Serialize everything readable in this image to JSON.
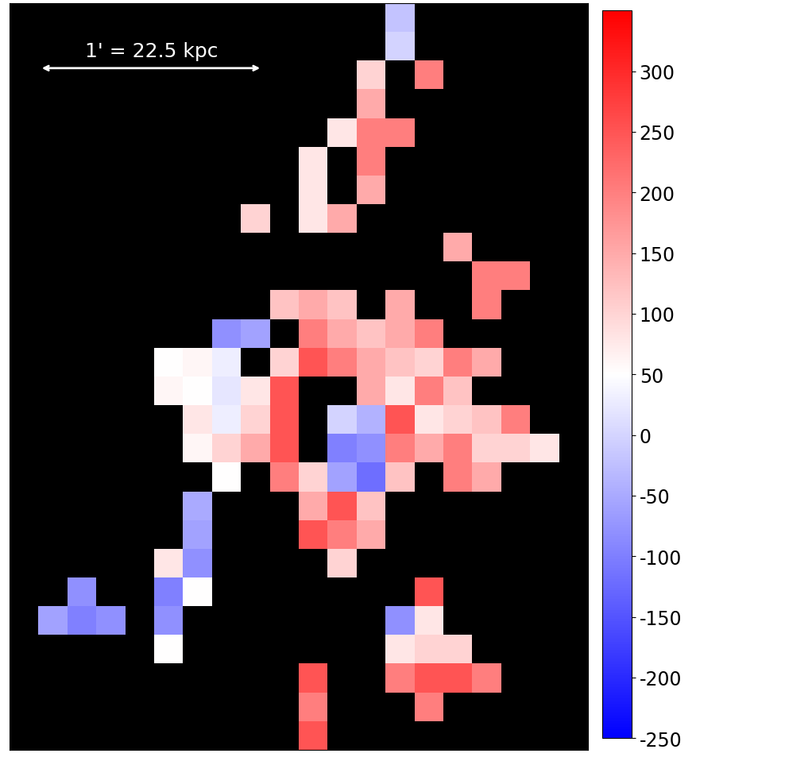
{
  "chart_data": {
    "type": "heatmap",
    "cells": [
      [
        null,
        null,
        null,
        null,
        null,
        null,
        null,
        null,
        null,
        null,
        null,
        null,
        null,
        -20,
        null,
        null,
        null,
        null,
        null,
        null
      ],
      [
        null,
        null,
        null,
        null,
        null,
        null,
        null,
        null,
        null,
        null,
        null,
        null,
        null,
        0,
        null,
        null,
        null,
        null,
        null,
        null
      ],
      [
        null,
        null,
        null,
        null,
        null,
        null,
        null,
        null,
        null,
        null,
        null,
        null,
        100,
        null,
        200,
        null,
        null,
        null,
        null,
        null
      ],
      [
        null,
        null,
        null,
        null,
        null,
        null,
        null,
        null,
        null,
        null,
        null,
        null,
        150,
        null,
        null,
        null,
        null,
        null,
        null,
        null
      ],
      [
        null,
        null,
        null,
        null,
        null,
        null,
        null,
        null,
        null,
        null,
        null,
        80,
        200,
        200,
        null,
        null,
        null,
        null,
        null,
        null
      ],
      [
        null,
        null,
        null,
        null,
        null,
        null,
        null,
        null,
        null,
        null,
        80,
        null,
        200,
        null,
        null,
        null,
        null,
        null,
        null,
        null
      ],
      [
        null,
        null,
        null,
        null,
        null,
        null,
        null,
        null,
        null,
        null,
        80,
        null,
        150,
        null,
        null,
        null,
        null,
        null,
        null,
        null
      ],
      [
        null,
        null,
        null,
        null,
        null,
        null,
        null,
        null,
        100,
        null,
        80,
        150,
        null,
        null,
        null,
        null,
        null,
        null,
        null,
        null
      ],
      [
        null,
        null,
        null,
        null,
        null,
        null,
        null,
        null,
        null,
        null,
        null,
        null,
        null,
        null,
        null,
        150,
        null,
        null,
        null,
        null
      ],
      [
        null,
        null,
        null,
        null,
        null,
        null,
        null,
        null,
        null,
        null,
        null,
        null,
        null,
        null,
        null,
        null,
        200,
        200,
        null,
        null
      ],
      [
        null,
        null,
        null,
        null,
        null,
        null,
        null,
        null,
        null,
        120,
        150,
        120,
        null,
        150,
        null,
        null,
        200,
        null,
        null,
        null
      ],
      [
        null,
        null,
        null,
        null,
        null,
        null,
        null,
        -80,
        -60,
        null,
        200,
        150,
        120,
        150,
        200,
        null,
        null,
        null,
        null,
        null
      ],
      [
        null,
        null,
        null,
        null,
        null,
        50,
        60,
        30,
        null,
        100,
        250,
        200,
        150,
        120,
        100,
        200,
        150,
        null,
        null,
        null
      ],
      [
        null,
        null,
        null,
        null,
        null,
        60,
        50,
        20,
        80,
        250,
        null,
        null,
        150,
        80,
        200,
        120,
        null,
        null,
        null,
        null
      ],
      [
        null,
        null,
        null,
        null,
        null,
        null,
        80,
        30,
        100,
        250,
        null,
        0,
        -40,
        250,
        80,
        100,
        120,
        200,
        null,
        null
      ],
      [
        null,
        null,
        null,
        null,
        null,
        null,
        60,
        100,
        150,
        250,
        null,
        -100,
        -80,
        200,
        150,
        200,
        100,
        100,
        80,
        null
      ],
      [
        null,
        null,
        null,
        null,
        null,
        null,
        null,
        50,
        null,
        200,
        100,
        -60,
        -120,
        120,
        null,
        200,
        150,
        null,
        null,
        null
      ],
      [
        null,
        null,
        null,
        null,
        null,
        null,
        -50,
        null,
        null,
        null,
        150,
        250,
        120,
        null,
        null,
        null,
        null,
        null,
        null,
        null
      ],
      [
        null,
        null,
        null,
        null,
        null,
        null,
        -60,
        null,
        null,
        null,
        250,
        200,
        150,
        null,
        null,
        null,
        null,
        null,
        null,
        null
      ],
      [
        null,
        null,
        null,
        null,
        null,
        80,
        -80,
        null,
        null,
        null,
        null,
        100,
        null,
        null,
        null,
        null,
        null,
        null,
        null,
        null
      ],
      [
        null,
        null,
        -80,
        null,
        null,
        -100,
        50,
        null,
        null,
        null,
        null,
        null,
        null,
        null,
        250,
        null,
        null,
        null,
        null,
        null
      ],
      [
        null,
        -60,
        -100,
        -80,
        null,
        -80,
        null,
        null,
        null,
        null,
        null,
        null,
        null,
        -80,
        80,
        null,
        null,
        null,
        null,
        null
      ],
      [
        null,
        null,
        null,
        null,
        null,
        50,
        null,
        null,
        null,
        null,
        null,
        null,
        null,
        80,
        100,
        100,
        null,
        null,
        null,
        null
      ],
      [
        null,
        null,
        null,
        null,
        null,
        null,
        null,
        null,
        null,
        null,
        250,
        null,
        null,
        200,
        250,
        250,
        200,
        null,
        null,
        null
      ],
      [
        null,
        null,
        null,
        null,
        null,
        null,
        null,
        null,
        null,
        null,
        200,
        null,
        null,
        null,
        200,
        null,
        null,
        null,
        null,
        null
      ],
      [
        null,
        null,
        null,
        null,
        null,
        null,
        null,
        null,
        null,
        null,
        250,
        null,
        null,
        null,
        null,
        null,
        null,
        null,
        null,
        null
      ]
    ],
    "clim": [
      -250,
      350
    ],
    "cticks": [
      -250,
      -200,
      -150,
      -100,
      -50,
      0,
      50,
      100,
      150,
      200,
      250,
      300
    ],
    "annotations": [
      "1' = 22.5 kpc"
    ],
    "tick_labels": false
  }
}
